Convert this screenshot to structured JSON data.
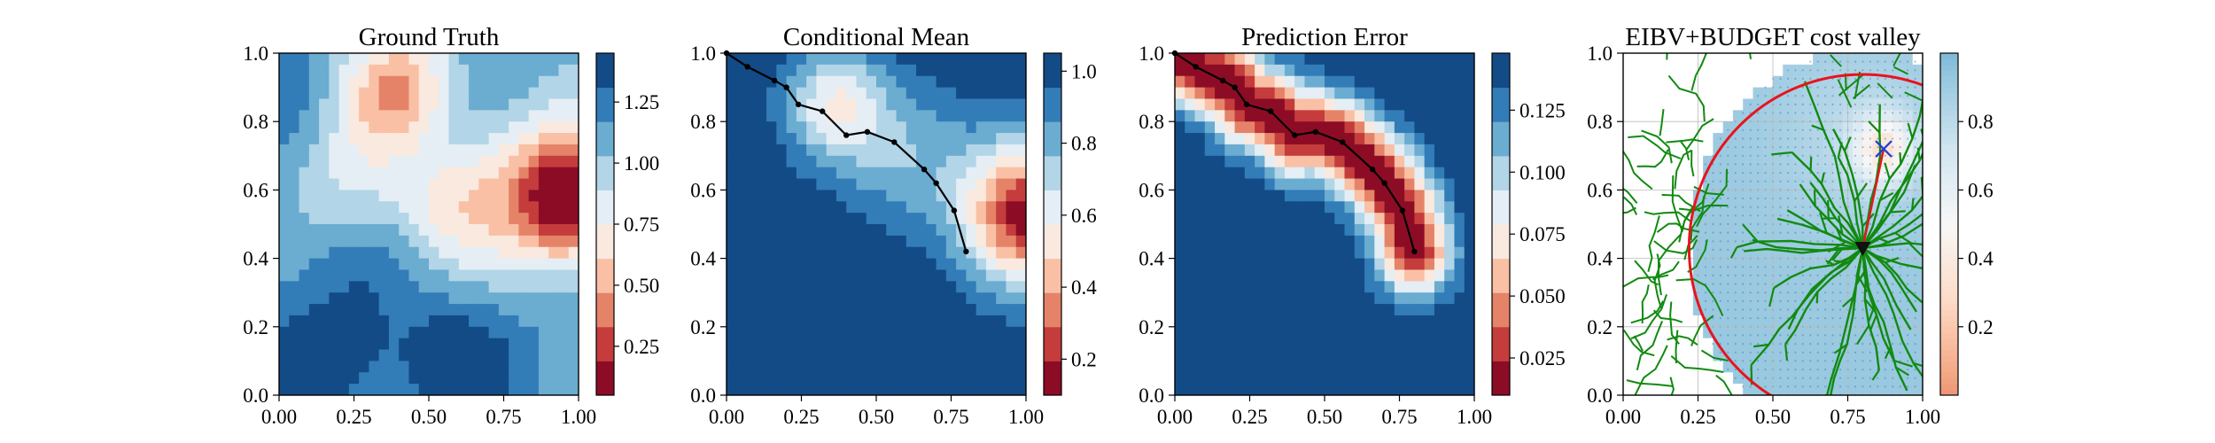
{
  "chart_data": [
    {
      "type": "heatmap",
      "title": "Ground Truth",
      "xlim": [
        0,
        1
      ],
      "ylim": [
        0,
        1
      ],
      "xticks": [
        "0.00",
        "0.25",
        "0.50",
        "0.75",
        "1.00"
      ],
      "yticks": [
        "0.0",
        "0.2",
        "0.4",
        "0.6",
        "0.8",
        "1.0"
      ],
      "colormap": "RdBu",
      "colorbar": {
        "min": 0.05,
        "max": 1.45,
        "ticks": [
          "0.25",
          "0.50",
          "0.75",
          "1.00",
          "1.25"
        ],
        "tick_values": [
          0.25,
          0.5,
          0.75,
          1.0,
          1.25
        ]
      },
      "features": [
        {
          "kind": "hot_spot",
          "x": 0.97,
          "y": 0.58,
          "peak_value": 0.15
        },
        {
          "kind": "warm_ridge",
          "x": 0.38,
          "y": 0.88,
          "value": 0.7
        },
        {
          "kind": "cold_basin",
          "x": 0.3,
          "y": 0.1,
          "value": 1.35
        }
      ]
    },
    {
      "type": "heatmap",
      "title": "Conditional Mean",
      "xlim": [
        0,
        1
      ],
      "ylim": [
        0,
        1
      ],
      "xticks": [
        "0.00",
        "0.25",
        "0.50",
        "0.75",
        "1.00"
      ],
      "yticks": [
        "0.0",
        "0.2",
        "0.4",
        "0.6",
        "0.8",
        "1.0"
      ],
      "colormap": "RdBu",
      "colorbar": {
        "min": 0.1,
        "max": 1.05,
        "ticks": [
          "0.2",
          "0.4",
          "0.6",
          "0.8",
          "1.0"
        ],
        "tick_values": [
          0.2,
          0.4,
          0.6,
          0.8,
          1.0
        ]
      },
      "path": {
        "x": [
          0.0,
          0.07,
          0.16,
          0.2,
          0.24,
          0.32,
          0.4,
          0.47,
          0.56,
          0.66,
          0.7,
          0.76,
          0.8
        ],
        "y": [
          1.0,
          0.96,
          0.92,
          0.9,
          0.85,
          0.83,
          0.76,
          0.77,
          0.74,
          0.66,
          0.62,
          0.54,
          0.42
        ]
      }
    },
    {
      "type": "heatmap",
      "title": "Prediction Error",
      "xlim": [
        0,
        1
      ],
      "ylim": [
        0,
        1
      ],
      "xticks": [
        "0.00",
        "0.25",
        "0.50",
        "0.75",
        "1.00"
      ],
      "yticks": [
        "0.0",
        "0.2",
        "0.4",
        "0.6",
        "0.8",
        "1.0"
      ],
      "colormap": "RdBu",
      "colorbar": {
        "min": 0.01,
        "max": 0.148,
        "ticks": [
          "0.025",
          "0.050",
          "0.075",
          "0.100",
          "0.125"
        ],
        "tick_values": [
          0.025,
          0.05,
          0.075,
          0.1,
          0.125
        ]
      },
      "path": {
        "x": [
          0.0,
          0.07,
          0.16,
          0.2,
          0.24,
          0.32,
          0.4,
          0.47,
          0.56,
          0.66,
          0.7,
          0.76,
          0.8
        ],
        "y": [
          1.0,
          0.96,
          0.92,
          0.9,
          0.85,
          0.83,
          0.76,
          0.77,
          0.74,
          0.66,
          0.62,
          0.54,
          0.42
        ]
      }
    },
    {
      "type": "heatmap",
      "title": "EIBV+BUDGET cost valley",
      "xlim": [
        0,
        1
      ],
      "ylim": [
        0,
        1
      ],
      "xticks": [
        "0.00",
        "0.25",
        "0.50",
        "0.75",
        "1.00"
      ],
      "yticks": [
        "0.0",
        "0.2",
        "0.4",
        "0.6",
        "0.8",
        "1.0"
      ],
      "colormap": "RdBu",
      "colorbar": {
        "min": 0.0,
        "max": 1.0,
        "ticks": [
          "0.2",
          "0.4",
          "0.6",
          "0.8"
        ],
        "tick_values": [
          0.2,
          0.4,
          0.6,
          0.8
        ]
      },
      "current_location": {
        "x": 0.8,
        "y": 0.43
      },
      "next_waypoint": {
        "x": 0.87,
        "y": 0.72
      },
      "budget_circle": {
        "center_x": 0.8,
        "center_y": 0.43,
        "radius": 0.58
      },
      "tree_color": "#118a11"
    }
  ]
}
